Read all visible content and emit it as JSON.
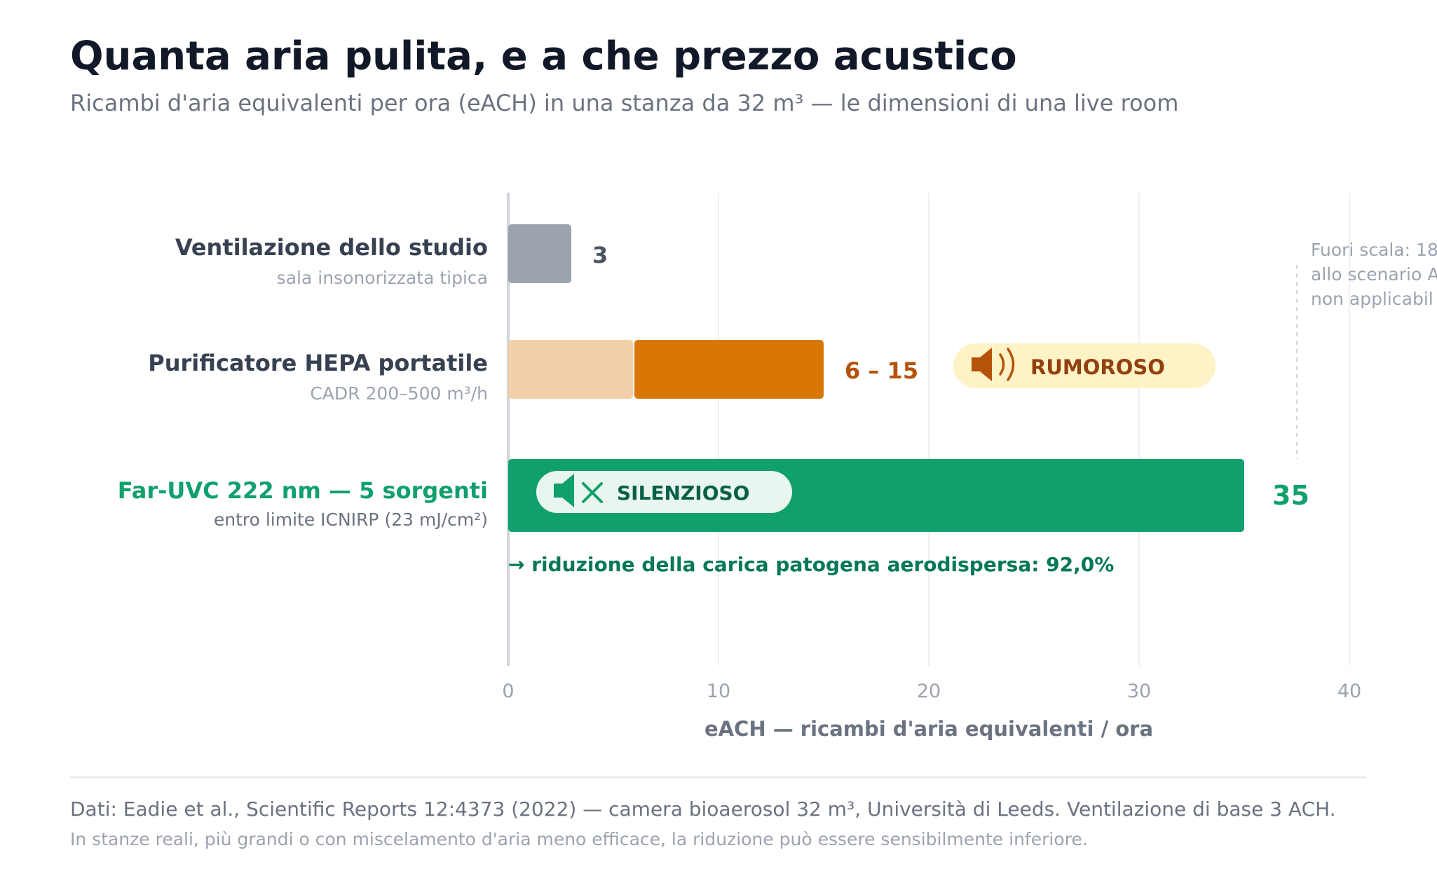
{
  "header": {
    "title": "Quanta aria pulita, e a che prezzo acustico",
    "subtitle": "Ricambi d'aria equivalenti per ora (eACH) in una stanza da 32 m³ — le dimensioni di una live room"
  },
  "chart_data": {
    "type": "bar",
    "orientation": "horizontal",
    "xlabel": "eACH — ricambi d'aria equivalenti / ora",
    "xlim": [
      0,
      40
    ],
    "xticks": [
      0,
      10,
      20,
      30,
      40
    ],
    "grid": true,
    "categories": [
      {
        "label": "Ventilazione dello studio",
        "sublabel": "sala insonorizzata tipica",
        "value": 3,
        "value_label": "3",
        "color": "#9ca3af",
        "label_color": "#374151",
        "value_color": "#4b5563"
      },
      {
        "label": "Purificatore HEPA portatile",
        "sublabel": "CADR 200–500 m³/h",
        "range": [
          6,
          15
        ],
        "value_label": "6 – 15",
        "color": "#d97706",
        "range_base_color": "#f2d0a9",
        "label_color": "#374151",
        "value_color": "#b45309",
        "badge": {
          "icon": "speaker-loud-icon",
          "text": "RUMOROSO",
          "bg": "#fef3c7",
          "fg": "#92400e"
        }
      },
      {
        "label": "Far-UVC 222 nm — 5 sorgenti",
        "sublabel": "entro limite ICNIRP (23 mJ/cm²)",
        "value": 35,
        "value_label": "35",
        "color": "#10a06c",
        "label_color": "#10a06c",
        "value_color": "#10a06c",
        "badge": {
          "icon": "speaker-muted-icon",
          "text": "SILENZIOSO",
          "bg": "#e8f6ef",
          "fg": "#065f46"
        },
        "note": "→ riduzione della carica patogena aerodispersa: 92,0%"
      }
    ],
    "annotations": [
      {
        "text_lines": [
          "Fuori scala: 18",
          "allo scenario A",
          "non applicabil"
        ],
        "color": "#9ca3af"
      }
    ]
  },
  "footer": {
    "source": "Dati: Eadie et al., Scientific Reports 12:4373 (2022) — camera bioaerosol 32 m³, Università di Leeds. Ventilazione di base 3 ACH.",
    "note": "In stanze reali, più grandi o con miscelamento d'aria meno efficace, la riduzione può essere sensibilmente inferiore."
  }
}
